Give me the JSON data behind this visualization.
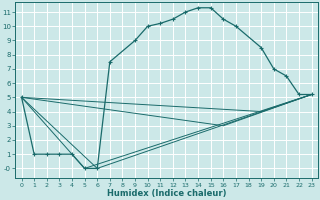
{
  "xlabel": "Humidex (Indice chaleur)",
  "bg_color": "#cce8e8",
  "grid_color": "#ffffff",
  "line_color": "#1a6b6b",
  "xlim": [
    -0.5,
    23.5
  ],
  "ylim": [
    -0.7,
    11.7
  ],
  "xticks": [
    0,
    1,
    2,
    3,
    4,
    5,
    6,
    7,
    8,
    9,
    10,
    11,
    12,
    13,
    14,
    15,
    16,
    17,
    18,
    19,
    20,
    21,
    22,
    23
  ],
  "yticks": [
    0,
    1,
    2,
    3,
    4,
    5,
    6,
    7,
    8,
    9,
    10,
    11
  ],
  "ytick_labels": [
    "-0",
    "1",
    "2",
    "3",
    "4",
    "5",
    "6",
    "7",
    "8",
    "9",
    "10",
    "11"
  ],
  "line_main": {
    "x": [
      0,
      1,
      2,
      3,
      4,
      5,
      6,
      7,
      9,
      10,
      11,
      12,
      13,
      14,
      15,
      16,
      17,
      19,
      20,
      21,
      22,
      23
    ],
    "y": [
      5,
      1,
      1,
      1,
      1,
      0,
      0,
      7.5,
      9,
      10,
      10.2,
      10.5,
      11,
      11.3,
      11.3,
      10.5,
      10,
      8.5,
      7,
      6.5,
      5.2,
      5.2
    ]
  },
  "lines_straight": [
    {
      "x": [
        0,
        5,
        23
      ],
      "y": [
        5,
        0,
        5.2
      ]
    },
    {
      "x": [
        0,
        6,
        23
      ],
      "y": [
        5,
        0,
        5.2
      ]
    },
    {
      "x": [
        0,
        16,
        23
      ],
      "y": [
        5,
        3,
        5.2
      ]
    },
    {
      "x": [
        0,
        19,
        23
      ],
      "y": [
        5,
        4,
        5.2
      ]
    }
  ]
}
